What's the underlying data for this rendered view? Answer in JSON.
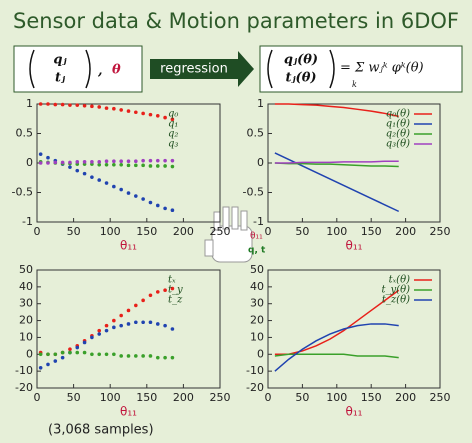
{
  "header": {
    "title": "Sensor data & Motion parameters in 6DOF"
  },
  "formula": {
    "left_q": "qⱼ",
    "left_t": "tⱼ",
    "left_comma": ",",
    "left_theta": "θ",
    "arrow": "regression",
    "right_q": "qⱼ(θ)",
    "right_t": "tⱼ(θ)",
    "right_rhs": "= Σ wⱼᵏ φᵏ(θ)",
    "right_sum_index": "k"
  },
  "hand": {
    "angle_label": "θ₁₁",
    "pose_label": "q, t"
  },
  "footnote": "(3,068 samples)",
  "chart_data": [
    {
      "type": "scatter",
      "x_label": "θ₁₁",
      "x": [
        5,
        15,
        25,
        35,
        45,
        55,
        65,
        75,
        85,
        95,
        105,
        115,
        125,
        135,
        145,
        155,
        165,
        175,
        185
      ],
      "xlim": [
        0,
        250
      ],
      "xticks": [
        0,
        50,
        100,
        150,
        200,
        250
      ],
      "ylim": [
        -1,
        1
      ],
      "yticks": [
        -1,
        -0.5,
        0,
        0.5,
        1
      ],
      "series": [
        {
          "name": "q₀",
          "color": "#e8201a",
          "values": [
            1.0,
            1.0,
            0.99,
            0.99,
            0.98,
            0.98,
            0.97,
            0.96,
            0.95,
            0.93,
            0.92,
            0.9,
            0.88,
            0.86,
            0.84,
            0.82,
            0.8,
            0.77,
            0.74
          ]
        },
        {
          "name": "q₁",
          "color": "#2043b0",
          "values": [
            0.15,
            0.09,
            0.04,
            -0.02,
            -0.07,
            -0.13,
            -0.18,
            -0.24,
            -0.29,
            -0.34,
            -0.4,
            -0.45,
            -0.51,
            -0.56,
            -0.61,
            -0.67,
            -0.72,
            -0.77,
            -0.8
          ]
        },
        {
          "name": "q₂",
          "color": "#3aa02a",
          "values": [
            0.02,
            0.01,
            0,
            -0.01,
            -0.01,
            -0.02,
            -0.02,
            -0.02,
            -0.03,
            -0.03,
            -0.03,
            -0.03,
            -0.04,
            -0.04,
            -0.04,
            -0.05,
            -0.05,
            -0.05,
            -0.06
          ]
        },
        {
          "name": "q₃",
          "color": "#a040c0",
          "values": [
            0,
            0,
            0.01,
            0.01,
            0.01,
            0.02,
            0.02,
            0.02,
            0.02,
            0.03,
            0.03,
            0.03,
            0.03,
            0.03,
            0.04,
            0.04,
            0.04,
            0.04,
            0.04
          ]
        }
      ]
    },
    {
      "type": "line",
      "x_label": "θ₁₁",
      "x": [
        10,
        30,
        50,
        70,
        90,
        110,
        130,
        150,
        170,
        190
      ],
      "xlim": [
        0,
        250
      ],
      "xticks": [
        0,
        50,
        100,
        150,
        200,
        250
      ],
      "ylim": [
        -1,
        1
      ],
      "yticks": [
        -1,
        -0.5,
        0,
        0.5,
        1
      ],
      "series": [
        {
          "name": "q₀(θ)",
          "color": "#e8201a",
          "values": [
            1,
            1,
            0.99,
            0.98,
            0.96,
            0.94,
            0.91,
            0.88,
            0.84,
            0.79
          ]
        },
        {
          "name": "q₁(θ)",
          "color": "#2043b0",
          "values": [
            0.17,
            0.06,
            -0.05,
            -0.16,
            -0.27,
            -0.38,
            -0.49,
            -0.6,
            -0.71,
            -0.82
          ]
        },
        {
          "name": "q₂(θ)",
          "color": "#3aa02a",
          "values": [
            0,
            -0.01,
            -0.01,
            -0.02,
            -0.02,
            -0.03,
            -0.04,
            -0.05,
            -0.05,
            -0.06
          ]
        },
        {
          "name": "q₃(θ)",
          "color": "#a040c0",
          "values": [
            0,
            0,
            0.01,
            0.01,
            0.01,
            0.02,
            0.02,
            0.02,
            0.03,
            0.03
          ]
        }
      ]
    },
    {
      "type": "scatter",
      "x_label": "θ₁₁",
      "x": [
        5,
        15,
        25,
        35,
        45,
        55,
        65,
        75,
        85,
        95,
        105,
        115,
        125,
        135,
        145,
        155,
        165,
        175,
        185
      ],
      "xlim": [
        0,
        250
      ],
      "xticks": [
        0,
        50,
        100,
        150,
        200,
        250
      ],
      "ylim": [
        -20,
        50
      ],
      "yticks": [
        -20,
        -10,
        0,
        10,
        20,
        30,
        40,
        50
      ],
      "series": [
        {
          "name": "tₓ",
          "color": "#e8201a",
          "values": [
            1,
            0,
            0,
            1,
            3,
            5,
            8,
            11,
            14,
            17,
            20,
            23,
            26,
            29,
            32,
            35,
            37,
            38,
            39
          ]
        },
        {
          "name": "t_y",
          "color": "#2043b0",
          "values": [
            -8,
            -6,
            -4,
            -2,
            1,
            4,
            7,
            10,
            12,
            14,
            16,
            17,
            18,
            19,
            19,
            19,
            18,
            17,
            15
          ]
        },
        {
          "name": "t_z",
          "color": "#3aa02a",
          "values": [
            0,
            0,
            0,
            1,
            1,
            1,
            1,
            0,
            0,
            0,
            0,
            -1,
            -1,
            -1,
            -1,
            -1,
            -2,
            -2,
            -2
          ]
        }
      ]
    },
    {
      "type": "line",
      "x_label": "θ₁₁",
      "x": [
        10,
        30,
        50,
        70,
        90,
        110,
        130,
        150,
        170,
        190
      ],
      "xlim": [
        0,
        250
      ],
      "xticks": [
        0,
        50,
        100,
        150,
        200,
        250
      ],
      "ylim": [
        -20,
        50
      ],
      "yticks": [
        -20,
        -10,
        0,
        10,
        20,
        30,
        40,
        50
      ],
      "series": [
        {
          "name": "tₓ(θ)",
          "color": "#e8201a",
          "values": [
            0,
            0,
            2,
            5,
            9,
            14,
            20,
            26,
            32,
            38
          ]
        },
        {
          "name": "t_y(θ)",
          "color": "#3aa02a",
          "values": [
            -1,
            0,
            0,
            0,
            0,
            0,
            -1,
            -1,
            -1,
            -2
          ]
        },
        {
          "name": "t_z(θ)",
          "color": "#2043b0",
          "values": [
            -10,
            -3,
            3,
            8,
            12,
            15,
            17,
            18,
            18,
            17
          ]
        }
      ]
    }
  ]
}
